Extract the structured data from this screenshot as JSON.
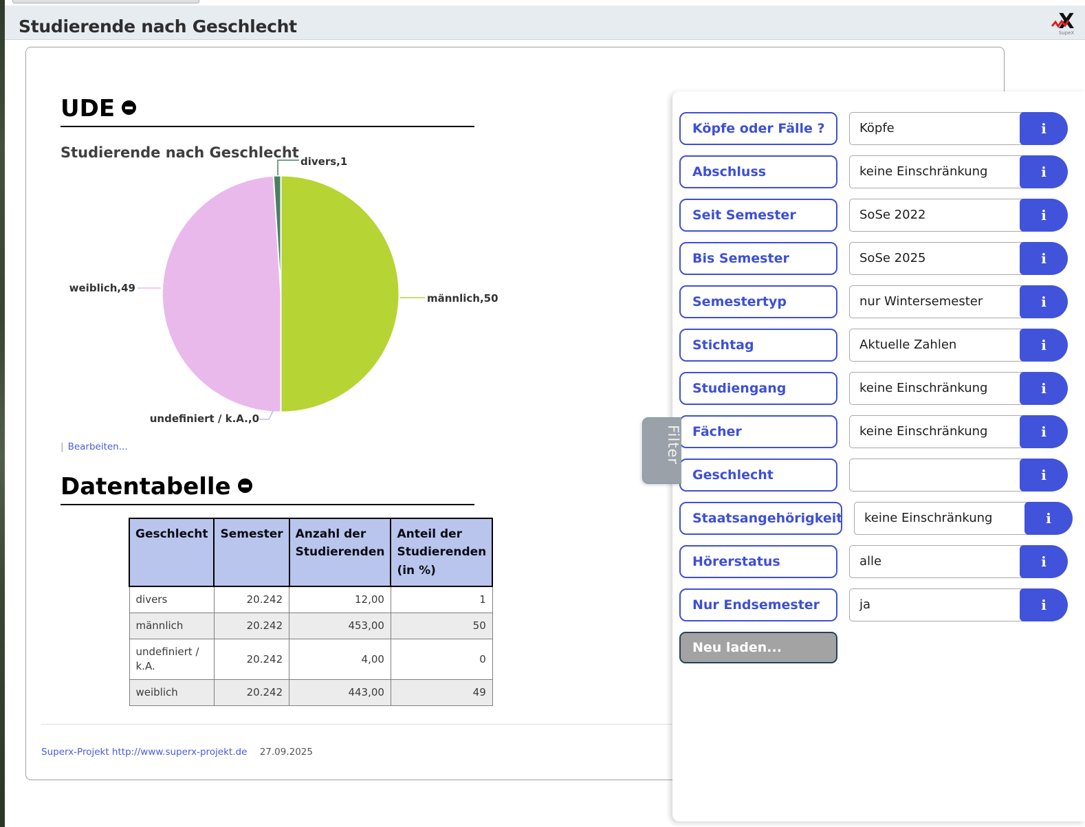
{
  "header": {
    "title": "Studierende nach Geschlecht",
    "logo_label": "SupeX"
  },
  "report": {
    "section1_title": "UDE",
    "chart_title": "Studierende nach Geschlecht",
    "edit_link": "Bearbeiten...",
    "section2_title": "Datentabelle",
    "footer_link": "Superx-Projekt http://www.superx-projekt.de",
    "footer_date": "27.09.2025"
  },
  "chart_data": {
    "type": "pie",
    "title": "Studierende nach Geschlecht",
    "unit": "Anteil der Studierenden in %",
    "start_angle_deg": 0,
    "direction": "clockwise",
    "legend_position": "none",
    "slices": [
      {
        "label": "männlich",
        "value": 50,
        "display": "männlich,50",
        "color": "#b6d433"
      },
      {
        "label": "undefiniert / k.A.",
        "value": 0,
        "display": "undefiniert / k.A.,0",
        "color": "#c6b5ec"
      },
      {
        "label": "weiblich",
        "value": 49,
        "display": "weiblich,49",
        "color": "#eab9ec"
      },
      {
        "label": "divers",
        "value": 1,
        "display": "divers,1",
        "color": "#4b7f63"
      }
    ]
  },
  "table": {
    "columns": [
      "Geschlecht",
      "Semester",
      "Anzahl der Studierenden",
      "Anteil der Studierenden (in %)"
    ],
    "numeric_columns": [
      1,
      2,
      3
    ],
    "rows": [
      [
        "divers",
        "20.242",
        "12,00",
        "1"
      ],
      [
        "männlich",
        "20.242",
        "453,00",
        "50"
      ],
      [
        "undefiniert / k.A.",
        "20.242",
        "4,00",
        "0"
      ],
      [
        "weiblich",
        "20.242",
        "443,00",
        "49"
      ]
    ]
  },
  "filter_panel": {
    "tab_label": "Filter",
    "info_icon": "i",
    "reload_button": "Neu laden...",
    "rows": [
      {
        "label": "Köpfe oder Fälle ?",
        "value": "Köpfe"
      },
      {
        "label": "Abschluss",
        "value": "keine Einschränkung"
      },
      {
        "label": "Seit Semester",
        "value": "SoSe 2022"
      },
      {
        "label": "Bis Semester",
        "value": "SoSe 2025"
      },
      {
        "label": "Semestertyp",
        "value": "nur Wintersemester"
      },
      {
        "label": "Stichtag",
        "value": "Aktuelle Zahlen"
      },
      {
        "label": "Studiengang",
        "value": "keine Einschränkung"
      },
      {
        "label": "Fächer",
        "value": "keine Einschränkung"
      },
      {
        "label": "Geschlecht",
        "value": ""
      },
      {
        "label": "Staatsangehörigkeit",
        "value": "keine Einschränkung"
      },
      {
        "label": "Hörerstatus",
        "value": "alle"
      },
      {
        "label": "Nur Endsemester",
        "value": "ja"
      }
    ]
  }
}
